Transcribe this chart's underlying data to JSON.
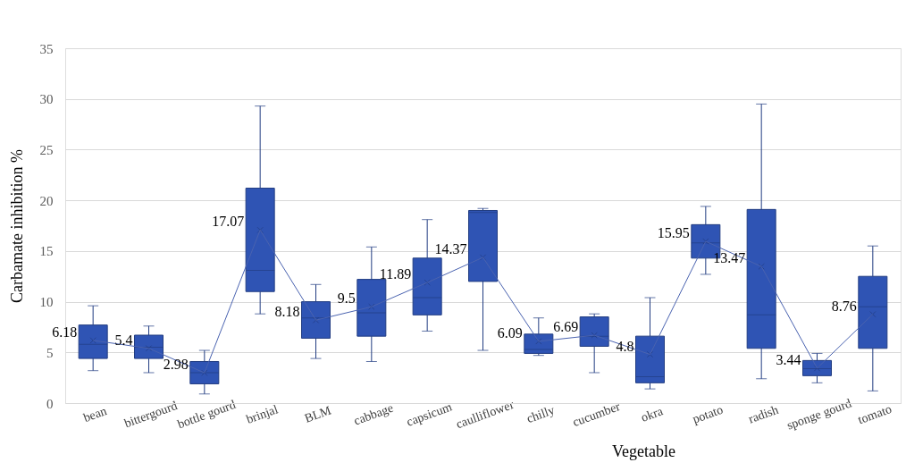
{
  "chart_data": {
    "type": "box",
    "xlabel": "Vegetable",
    "ylabel": "Carbamate inhibition %",
    "categories": [
      "bean",
      "bittergourd",
      "bottle gourd",
      "brinjal",
      "BLM",
      "cabbage",
      "capsicum",
      "caulliflower",
      "chilly",
      "cucumber",
      "okra",
      "potato",
      "radish",
      "sponge gourd",
      "tomato"
    ],
    "series": [
      {
        "type": "box",
        "color": "#2f54b4",
        "boxes": [
          {
            "low": 3.2,
            "q1": 4.4,
            "median": 5.8,
            "q3": 7.7,
            "high": 9.6,
            "mean": 6.18
          },
          {
            "low": 3.0,
            "q1": 4.4,
            "median": 5.5,
            "q3": 6.7,
            "high": 7.6,
            "mean": 5.4
          },
          {
            "low": 0.9,
            "q1": 1.9,
            "median": 3.0,
            "q3": 4.1,
            "high": 5.2,
            "mean": 2.98
          },
          {
            "low": 8.8,
            "q1": 11.0,
            "median": 13.1,
            "q3": 21.2,
            "high": 29.3,
            "mean": 17.07
          },
          {
            "low": 4.4,
            "q1": 6.4,
            "median": 8.4,
            "q3": 10.0,
            "high": 11.7,
            "mean": 8.18
          },
          {
            "low": 4.1,
            "q1": 6.6,
            "median": 8.9,
            "q3": 12.2,
            "high": 15.4,
            "mean": 9.5
          },
          {
            "low": 7.1,
            "q1": 8.7,
            "median": 10.4,
            "q3": 14.3,
            "high": 18.1,
            "mean": 11.89
          },
          {
            "low": 5.2,
            "q1": 12.0,
            "median": 18.8,
            "q3": 19.0,
            "high": 19.2,
            "mean": 14.37
          },
          {
            "low": 4.7,
            "q1": 4.9,
            "median": 5.3,
            "q3": 6.8,
            "high": 8.4,
            "mean": 6.09
          },
          {
            "low": 3.0,
            "q1": 5.6,
            "median": 6.6,
            "q3": 8.5,
            "high": 8.8,
            "mean": 6.69
          },
          {
            "low": 1.4,
            "q1": 2.0,
            "median": 2.6,
            "q3": 6.6,
            "high": 10.4,
            "mean": 4.8
          },
          {
            "low": 12.7,
            "q1": 14.3,
            "median": 15.8,
            "q3": 17.6,
            "high": 19.4,
            "mean": 15.95
          },
          {
            "low": 2.4,
            "q1": 5.4,
            "median": 8.7,
            "q3": 19.1,
            "high": 29.5,
            "mean": 13.47
          },
          {
            "low": 2.0,
            "q1": 2.7,
            "median": 3.4,
            "q3": 4.2,
            "high": 4.9,
            "mean": 3.44
          },
          {
            "low": 1.2,
            "q1": 5.4,
            "median": 9.5,
            "q3": 12.5,
            "high": 15.5,
            "mean": 8.76
          }
        ]
      },
      {
        "type": "line",
        "color": "#4a63b0",
        "values": [
          6.18,
          5.4,
          2.98,
          17.07,
          8.18,
          9.5,
          11.89,
          14.37,
          6.09,
          6.69,
          4.8,
          15.95,
          13.47,
          3.44,
          8.76
        ],
        "data_labels": true
      }
    ],
    "ylim": [
      0,
      35
    ],
    "yticks": [
      0,
      5,
      10,
      15,
      20,
      25,
      30,
      35
    ],
    "grid": "y"
  }
}
